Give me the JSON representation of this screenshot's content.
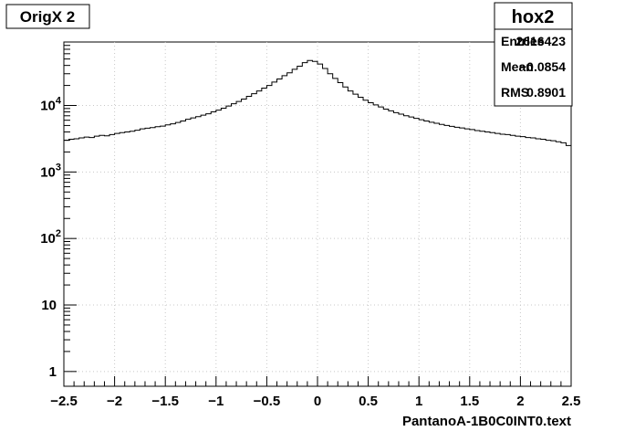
{
  "canvas_title": "OrigX 2",
  "stats": {
    "title": "hox2",
    "rows": [
      {
        "label": "Entries",
        "value": "2616423"
      },
      {
        "label": "Mean",
        "value": "−0.0854"
      },
      {
        "label": "RMS",
        "value": "0.8901"
      }
    ]
  },
  "chart_data": {
    "type": "line",
    "style": "step-histogram",
    "title": "OrigX 2",
    "xlabel": "PantanoA-1B0C0INT0.text",
    "ylabel": "",
    "xlim": [
      -2.5,
      2.5
    ],
    "ylim": [
      0.6,
      90000
    ],
    "yscale": "log",
    "grid": true,
    "line_color": "#000000",
    "grid_color": "#c8c8c8",
    "x_ticks": [
      {
        "value": -2.5,
        "label": "−2.5"
      },
      {
        "value": -2,
        "label": "−2"
      },
      {
        "value": -1.5,
        "label": "−1.5"
      },
      {
        "value": -1,
        "label": "−1"
      },
      {
        "value": -0.5,
        "label": "−0.5"
      },
      {
        "value": 0,
        "label": "0"
      },
      {
        "value": 0.5,
        "label": "0.5"
      },
      {
        "value": 1,
        "label": "1"
      },
      {
        "value": 1.5,
        "label": "1.5"
      },
      {
        "value": 2,
        "label": "2"
      },
      {
        "value": 2.5,
        "label": "2.5"
      }
    ],
    "y_ticks": [
      {
        "value": 1,
        "label": "1",
        "sup": ""
      },
      {
        "value": 10,
        "label": "10",
        "sup": ""
      },
      {
        "value": 100,
        "label": "10",
        "sup": "2"
      },
      {
        "value": 1000,
        "label": "10",
        "sup": "3"
      },
      {
        "value": 10000,
        "label": "10",
        "sup": "4"
      }
    ],
    "x": [
      -2.475,
      -2.425,
      -2.375,
      -2.325,
      -2.275,
      -2.225,
      -2.175,
      -2.125,
      -2.075,
      -2.025,
      -1.975,
      -1.925,
      -1.875,
      -1.825,
      -1.775,
      -1.725,
      -1.675,
      -1.625,
      -1.575,
      -1.525,
      -1.475,
      -1.425,
      -1.375,
      -1.325,
      -1.275,
      -1.225,
      -1.175,
      -1.125,
      -1.075,
      -1.025,
      -0.975,
      -0.925,
      -0.875,
      -0.825,
      -0.775,
      -0.725,
      -0.675,
      -0.625,
      -0.575,
      -0.525,
      -0.475,
      -0.425,
      -0.375,
      -0.325,
      -0.275,
      -0.225,
      -0.175,
      -0.125,
      -0.075,
      -0.025,
      0.025,
      0.075,
      0.125,
      0.175,
      0.225,
      0.275,
      0.325,
      0.375,
      0.425,
      0.475,
      0.525,
      0.575,
      0.625,
      0.675,
      0.725,
      0.775,
      0.825,
      0.875,
      0.925,
      0.975,
      1.025,
      1.075,
      1.125,
      1.175,
      1.225,
      1.275,
      1.325,
      1.375,
      1.425,
      1.475,
      1.525,
      1.575,
      1.625,
      1.675,
      1.725,
      1.775,
      1.825,
      1.875,
      1.925,
      1.975,
      2.025,
      2.075,
      2.125,
      2.175,
      2.225,
      2.275,
      2.325,
      2.375,
      2.425,
      2.475
    ],
    "values": [
      3000,
      3100,
      3150,
      3250,
      3350,
      3300,
      3450,
      3550,
      3500,
      3650,
      3800,
      3900,
      4000,
      4100,
      4250,
      4450,
      4550,
      4650,
      4800,
      4900,
      5100,
      5300,
      5550,
      5850,
      6200,
      6500,
      6800,
      7150,
      7500,
      8000,
      8500,
      9100,
      9800,
      10600,
      11500,
      12500,
      13700,
      15000,
      16500,
      18200,
      20000,
      22500,
      25000,
      28000,
      31000,
      35000,
      39000,
      44000,
      47500,
      46000,
      42000,
      36000,
      30000,
      25500,
      22000,
      19000,
      16500,
      14800,
      13300,
      12000,
      11000,
      10200,
      9500,
      8800,
      8300,
      7800,
      7400,
      7000,
      6700,
      6400,
      6100,
      5850,
      5600,
      5400,
      5200,
      5000,
      4850,
      4700,
      4600,
      4450,
      4350,
      4200,
      4100,
      4000,
      3900,
      3800,
      3700,
      3650,
      3550,
      3450,
      3400,
      3300,
      3250,
      3150,
      3100,
      3000,
      2950,
      2850,
      2750,
      2500
    ]
  }
}
